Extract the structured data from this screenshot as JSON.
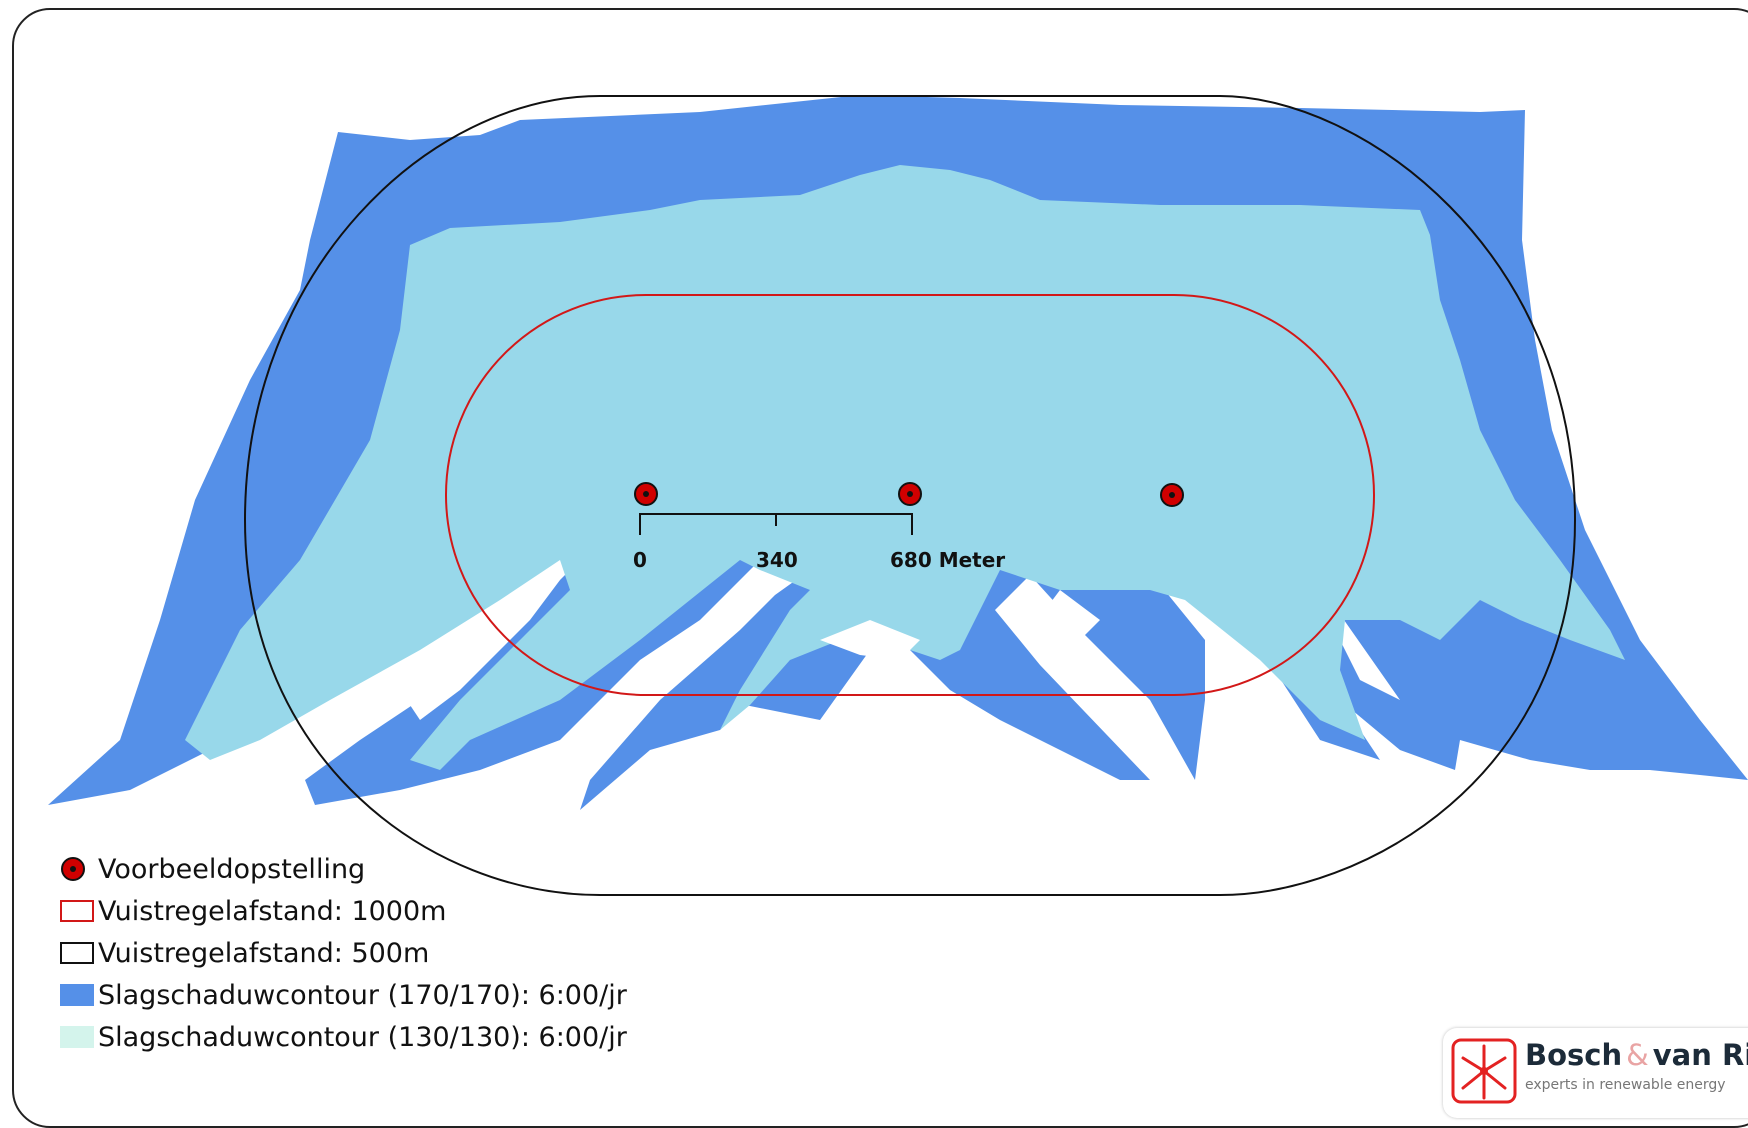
{
  "colors": {
    "contour_170": "#5590e8",
    "contour_130": "#98d8ea",
    "legend_130_swatch": "#d4f4ec",
    "rule_1000m": "#d21818",
    "rule_500m": "#111111",
    "turbine": "#d00000"
  },
  "scale_bar": {
    "ticks": [
      "0",
      "340",
      "680 Meter"
    ]
  },
  "legend": [
    {
      "symbol": "red-dot",
      "label": "Voorbeeldopstelling"
    },
    {
      "symbol": "red-outline",
      "label": "Vuistregelafstand: 1000m"
    },
    {
      "symbol": "black-outline",
      "label": "Vuistregelafstand: 500m"
    },
    {
      "symbol": "blue-fill",
      "label": "Slagschaduwcontour (170/170): 6:00/jr"
    },
    {
      "symbol": "lightcyan-fill",
      "label": "Slagschaduwcontour (130/130): 6:00/jr"
    }
  ],
  "logo": {
    "name_part1": "Bosch",
    "name_amp": "&",
    "name_part2": "van Rijn",
    "tagline": "experts in renewable energy",
    "icon": "turbine-star-icon"
  }
}
